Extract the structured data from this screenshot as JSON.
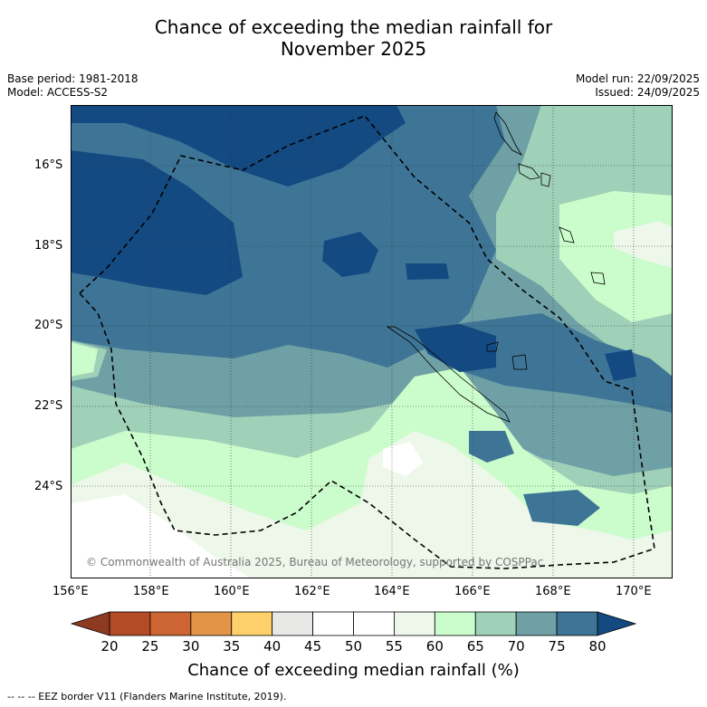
{
  "header": {
    "title_line1": "Chance of exceeding the median rainfall for",
    "title_line2": "November 2025",
    "base_period": "Base period: 1981-2018",
    "model": "Model: ACCESS-S2",
    "model_run": "Model run: 22/09/2025",
    "issued": "Issued: 24/09/2025"
  },
  "map": {
    "lon_labels": [
      "156°E",
      "158°E",
      "160°E",
      "162°E",
      "164°E",
      "166°E",
      "168°E",
      "170°E"
    ],
    "lat_labels": [
      "16°S",
      "18°S",
      "20°S",
      "22°S",
      "24°S"
    ],
    "copyright": "© Commonwealth of Australia 2025, Bureau of Meteorology, supported by COSPPac"
  },
  "colorbar": {
    "ticks": [
      "20",
      "25",
      "30",
      "35",
      "40",
      "45",
      "50",
      "55",
      "60",
      "65",
      "70",
      "75",
      "80"
    ],
    "colors": [
      "#b44a26",
      "#cd6532",
      "#e29447",
      "#fdd06a",
      "#e8e8e6",
      "#ffffff",
      "#ffffff",
      "#edf7ea",
      "#cbfccb",
      "#9fd0b8",
      "#6ea0a5",
      "#3e7596"
    ],
    "low_extend_color": "#8c3a22",
    "high_extend_color": "#134a82",
    "title": "Chance of exceeding median rainfall (%)"
  },
  "footnote": "--  --  -- EEZ border V11 (Flanders Marine Institute, 2019)."
}
